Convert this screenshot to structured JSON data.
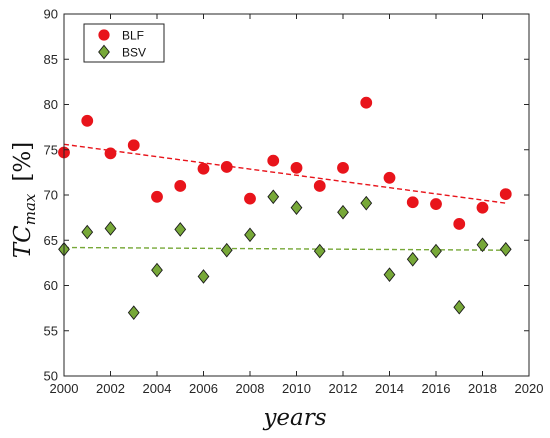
{
  "chart_data": {
    "type": "scatter",
    "xlabel": "years",
    "ylabel_main": "TC",
    "ylabel_sub": "max",
    "ylabel_unit": "[%]",
    "xlim": [
      2000,
      2020
    ],
    "ylim": [
      50,
      90
    ],
    "xticks": [
      2000,
      2002,
      2004,
      2006,
      2008,
      2010,
      2012,
      2014,
      2016,
      2018,
      2020
    ],
    "yticks": [
      50,
      55,
      60,
      65,
      70,
      75,
      80,
      85,
      90
    ],
    "grid": false,
    "legend_position": "top-left",
    "series": [
      {
        "name": "BLF",
        "marker": "circle",
        "color": "#e8141b",
        "x": [
          2000,
          2001,
          2002,
          2003,
          2004,
          2005,
          2006,
          2007,
          2008,
          2009,
          2010,
          2011,
          2012,
          2013,
          2014,
          2015,
          2016,
          2017,
          2018,
          2019
        ],
        "y": [
          74.7,
          78.2,
          74.6,
          75.5,
          69.8,
          71.0,
          72.9,
          73.1,
          69.6,
          73.8,
          73.0,
          71.0,
          73.0,
          80.2,
          71.9,
          69.2,
          69.0,
          66.8,
          68.6,
          70.1
        ],
        "trend": {
          "x": [
            2000,
            2019
          ],
          "y": [
            75.6,
            69.1
          ],
          "style": "dashed"
        }
      },
      {
        "name": "BSV",
        "marker": "diamond",
        "color": "#77a838",
        "x": [
          2000,
          2001,
          2002,
          2003,
          2004,
          2005,
          2006,
          2007,
          2008,
          2009,
          2010,
          2011,
          2012,
          2013,
          2014,
          2015,
          2016,
          2017,
          2018,
          2019
        ],
        "y": [
          64.0,
          65.9,
          66.3,
          57.0,
          61.7,
          66.2,
          61.0,
          63.9,
          65.6,
          69.8,
          68.6,
          63.8,
          68.1,
          69.1,
          61.2,
          62.9,
          63.8,
          57.6,
          64.5,
          64.0
        ],
        "trend": {
          "x": [
            2000,
            2019
          ],
          "y": [
            64.2,
            63.9
          ],
          "style": "dashed"
        }
      }
    ]
  }
}
